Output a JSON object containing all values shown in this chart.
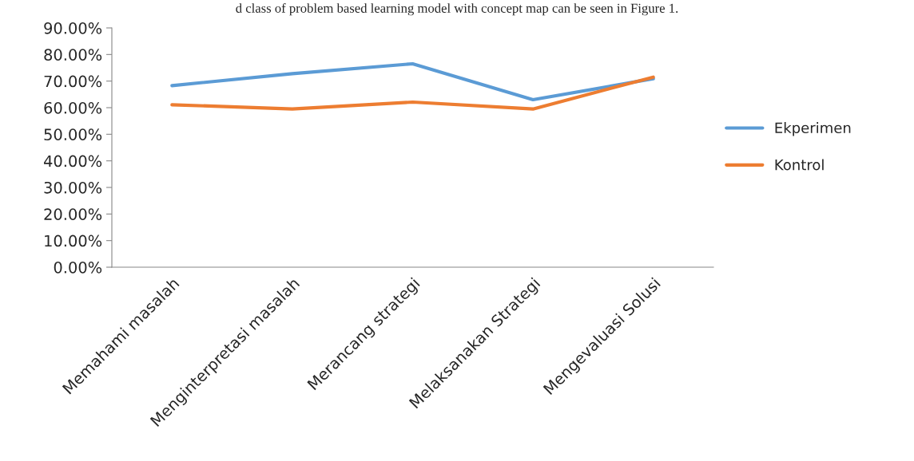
{
  "chart_data": {
    "type": "line",
    "annotations": [
      "d class of problem based learning model with concept map can be seen in Figure 1."
    ],
    "categories": [
      "Memahami masalah",
      "Menginterpretasi masalah",
      "Merancang strategi",
      "Melaksanakan Strategi",
      "Mengevaluasi Solusi"
    ],
    "series": [
      {
        "name": "Ekperimen",
        "color": "#5b9bd5",
        "values": [
          68.3,
          72.8,
          76.5,
          63.0,
          70.9
        ]
      },
      {
        "name": "Kontrol",
        "color": "#ed7d31",
        "values": [
          61.1,
          59.5,
          62.1,
          59.5,
          71.5
        ]
      }
    ],
    "ylim": [
      0,
      90
    ],
    "yticks": [
      {
        "value": 0,
        "label": "0.00%"
      },
      {
        "value": 10,
        "label": "10.00%"
      },
      {
        "value": 20,
        "label": "20.00%"
      },
      {
        "value": 30,
        "label": "30.00%"
      },
      {
        "value": 40,
        "label": "40.00%"
      },
      {
        "value": 50,
        "label": "50.00%"
      },
      {
        "value": 60,
        "label": "60.00%"
      },
      {
        "value": 70,
        "label": "70.00%"
      },
      {
        "value": 80,
        "label": "80.00%"
      },
      {
        "value": 90,
        "label": "90.00%"
      }
    ],
    "grid": false,
    "legend": "right",
    "marker": "none",
    "line_style": "solid"
  }
}
